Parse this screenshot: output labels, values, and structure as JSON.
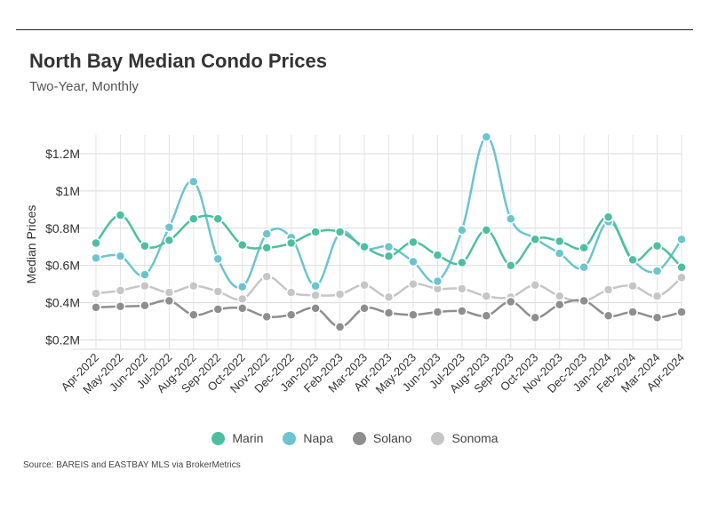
{
  "header": {
    "title": "North Bay Median Condo Prices",
    "subtitle": "Two-Year, Monthly"
  },
  "footer": {
    "source": "Source:  BAREIS and EASTBAY MLS via BrokerMetrics"
  },
  "chart_data": {
    "type": "line",
    "ylabel": "Median Prices",
    "xlabel": "",
    "ylim": [
      150000,
      1300000
    ],
    "yticks": [
      200000,
      400000,
      600000,
      800000,
      1000000,
      1200000
    ],
    "ytick_labels": [
      "$0.2M",
      "$0.4M",
      "$0.6M",
      "$0.8M",
      "$1M",
      "$1.2M"
    ],
    "grid": true,
    "legend_position": "bottom",
    "categories": [
      "Apr-2022",
      "May-2022",
      "Jun-2022",
      "Jul-2022",
      "Aug-2022",
      "Sep-2022",
      "Oct-2022",
      "Nov-2022",
      "Dec-2022",
      "Jan-2023",
      "Feb-2023",
      "Mar-2023",
      "Apr-2023",
      "May-2023",
      "Jun-2023",
      "Jul-2023",
      "Aug-2023",
      "Sep-2023",
      "Oct-2023",
      "Nov-2023",
      "Dec-2023",
      "Jan-2024",
      "Feb-2024",
      "Mar-2024",
      "Apr-2024"
    ],
    "series": [
      {
        "name": "Marin",
        "color": "#4dbfa0",
        "values": [
          720000,
          870000,
          705000,
          735000,
          850000,
          850000,
          710000,
          695000,
          720000,
          780000,
          780000,
          700000,
          650000,
          725000,
          655000,
          615000,
          790000,
          600000,
          740000,
          730000,
          695000,
          860000,
          630000,
          705000,
          590000
        ]
      },
      {
        "name": "Napa",
        "color": "#6cc4cf",
        "values": [
          640000,
          650000,
          550000,
          805000,
          1050000,
          635000,
          485000,
          770000,
          750000,
          490000,
          775000,
          690000,
          700000,
          620000,
          515000,
          790000,
          1290000,
          850000,
          745000,
          665000,
          590000,
          835000,
          630000,
          570000,
          740000
        ]
      },
      {
        "name": "Solano",
        "color": "#8e8e8e",
        "values": [
          375000,
          380000,
          385000,
          410000,
          335000,
          365000,
          370000,
          325000,
          335000,
          370000,
          270000,
          370000,
          345000,
          335000,
          350000,
          355000,
          330000,
          405000,
          320000,
          390000,
          410000,
          330000,
          350000,
          320000,
          350000
        ]
      },
      {
        "name": "Sonoma",
        "color": "#c6c6c6",
        "values": [
          450000,
          465000,
          490000,
          455000,
          490000,
          460000,
          420000,
          540000,
          455000,
          440000,
          445000,
          495000,
          430000,
          500000,
          475000,
          475000,
          435000,
          430000,
          495000,
          435000,
          410000,
          470000,
          490000,
          435000,
          535000
        ]
      }
    ]
  }
}
